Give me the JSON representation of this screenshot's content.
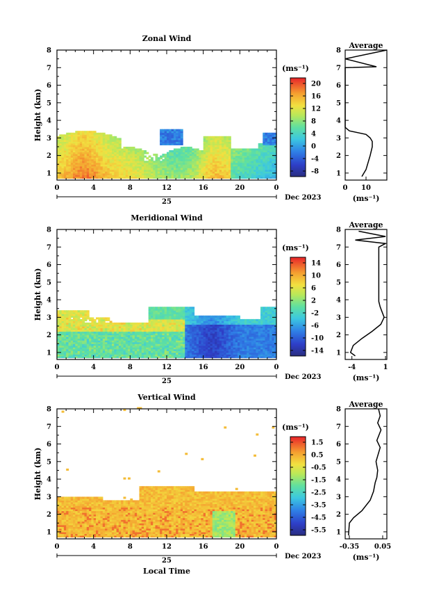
{
  "panels": [
    {
      "title": "Zonal Wind",
      "avg_title": "Average",
      "unit": "(ms⁻¹)",
      "avg_unit": "(ms⁻¹)",
      "colorbar_ticks": [
        "20",
        "16",
        "12",
        "8",
        "4",
        "0",
        "-4",
        "-8"
      ],
      "avg_xticks": [
        "0",
        "10"
      ],
      "avg_xrange": [
        0,
        20
      ],
      "clim": [
        -10,
        22
      ]
    },
    {
      "title": "Meridional Wind",
      "avg_title": "Average",
      "unit": "(ms⁻¹)",
      "avg_unit": "(ms⁻¹)",
      "colorbar_ticks": [
        "14",
        "10",
        "6",
        "2",
        "-2",
        "-6",
        "-10",
        "-14"
      ],
      "avg_xticks": [
        "-4",
        "1"
      ],
      "avg_xrange": [
        -5,
        1.2
      ],
      "clim": [
        -16,
        16
      ]
    },
    {
      "title": "Vertical Wind",
      "avg_title": "Average",
      "unit": "(ms⁻¹)",
      "avg_unit": "(ms⁻¹)",
      "colorbar_ticks": [
        "1.5",
        "0.5",
        "-0.5",
        "-1.5",
        "-2.5",
        "-3.5",
        "-4.5",
        "-5.5"
      ],
      "avg_xticks": [
        "-0.35",
        "0.05"
      ],
      "avg_xrange": [
        -0.4,
        0.1
      ],
      "clim": [
        -6,
        2
      ]
    }
  ],
  "axes": {
    "ylabel": "Height (km)",
    "yticks": [
      "1",
      "2",
      "3",
      "4",
      "5",
      "6",
      "7",
      "8"
    ],
    "xticks": [
      "0",
      "4",
      "8",
      "12",
      "16",
      "20",
      "0"
    ],
    "day_label": "25",
    "month_label": "Dec 2023",
    "xlabel": "Local Time"
  },
  "chart_data": [
    {
      "type": "heatmap",
      "title": "Zonal Wind",
      "xlabel": "",
      "ylabel": "Height (km)",
      "xlim": [
        0,
        24
      ],
      "ylim": [
        0.6,
        8
      ],
      "colorbar_unit": "(ms⁻¹)",
      "colorbar_ticks": [
        20,
        16,
        12,
        8,
        4,
        0,
        -4,
        -8
      ],
      "description_points": [
        {
          "x_hour": 1,
          "height_km": 2.8,
          "value": 16
        },
        {
          "x_hour": 3,
          "height_km": 3.0,
          "value": 20
        },
        {
          "x_hour": 5,
          "height_km": 2.5,
          "value": 14
        },
        {
          "x_hour": 8,
          "height_km": 2.0,
          "value": 10
        },
        {
          "x_hour": 11.5,
          "height_km": 3.1,
          "value": -4
        },
        {
          "x_hour": 13,
          "height_km": 3.1,
          "value": -4
        },
        {
          "x_hour": 17,
          "height_km": 2.8,
          "value": 14
        },
        {
          "x_hour": 20,
          "height_km": 2.0,
          "value": 8
        },
        {
          "x_hour": 23,
          "height_km": 3.0,
          "value": -3
        }
      ]
    },
    {
      "type": "line",
      "title": "Average",
      "xlabel": "(ms⁻¹)",
      "xlim": [
        0,
        20
      ],
      "ylim": [
        0.6,
        8
      ],
      "x": [
        8,
        10,
        11,
        12,
        13,
        13,
        12,
        10,
        2,
        0,
        0,
        0,
        15,
        0,
        20
      ],
      "y": [
        0.8,
        1.2,
        1.6,
        2.0,
        2.5,
        2.8,
        3.0,
        3.2,
        3.4,
        3.6,
        6.5,
        7.0,
        7.05,
        7.5,
        8.0
      ]
    },
    {
      "type": "heatmap",
      "title": "Meridional Wind",
      "xlabel": "",
      "ylabel": "Height (km)",
      "xlim": [
        0,
        24
      ],
      "ylim": [
        0.6,
        8
      ],
      "colorbar_unit": "(ms⁻¹)",
      "colorbar_ticks": [
        14,
        10,
        6,
        2,
        -2,
        -6,
        -10,
        -14
      ],
      "description_points": [
        {
          "x_hour": 1,
          "height_km": 2.8,
          "value": 6
        },
        {
          "x_hour": 2,
          "height_km": 1.5,
          "value": -2
        },
        {
          "x_hour": 6,
          "height_km": 2.5,
          "value": 8
        },
        {
          "x_hour": 10,
          "height_km": 1.4,
          "value": -2
        },
        {
          "x_hour": 12,
          "height_km": 2.8,
          "value": 0
        },
        {
          "x_hour": 17,
          "height_km": 2.0,
          "value": -12
        },
        {
          "x_hour": 20,
          "height_km": 1.5,
          "value": -10
        },
        {
          "x_hour": 23,
          "height_km": 3.0,
          "value": 0
        }
      ]
    },
    {
      "type": "line",
      "title": "Average",
      "xlabel": "(ms⁻¹)",
      "xlim": [
        -5,
        1.2
      ],
      "ylim": [
        0.6,
        8
      ],
      "x": [
        -3.5,
        -4.2,
        -3.8,
        -2.5,
        -1.0,
        0.3,
        0.8,
        0.5,
        0.2,
        0.0,
        0.0,
        1.0,
        -3.5,
        1.0,
        -3.0
      ],
      "y": [
        0.8,
        1.0,
        1.4,
        1.8,
        2.2,
        2.6,
        3.0,
        3.3,
        3.6,
        3.9,
        7.0,
        7.2,
        7.4,
        7.6,
        7.9
      ]
    },
    {
      "type": "heatmap",
      "title": "Vertical Wind",
      "xlabel": "Local Time",
      "ylabel": "Height (km)",
      "xlim": [
        0,
        24
      ],
      "ylim": [
        0.6,
        8
      ],
      "colorbar_unit": "(ms⁻¹)",
      "colorbar_ticks": [
        1.5,
        0.5,
        -0.5,
        -1.5,
        -2.5,
        -3.5,
        -4.5,
        -5.5
      ],
      "description_points": [
        {
          "x_hour": 2,
          "height_km": 2.0,
          "value": 0.3
        },
        {
          "x_hour": 6,
          "height_km": 2.5,
          "value": 0.2
        },
        {
          "x_hour": 10,
          "height_km": 1.5,
          "value": 1.5
        },
        {
          "x_hour": 12,
          "height_km": 3.2,
          "value": 0.8
        },
        {
          "x_hour": 18,
          "height_km": 1.5,
          "value": -2.0
        },
        {
          "x_hour": 23,
          "height_km": 1.5,
          "value": 1.5
        }
      ]
    },
    {
      "type": "line",
      "title": "Average",
      "xlabel": "(ms⁻¹)",
      "xlim": [
        -0.4,
        0.1
      ],
      "ylim": [
        0.6,
        8
      ],
      "x": [
        -0.36,
        -0.35,
        -0.3,
        -0.2,
        -0.1,
        -0.06,
        -0.04,
        -0.02,
        -0.01,
        -0.03,
        0.02,
        -0.02,
        0.03,
        -0.01,
        0.02,
        0.0
      ],
      "y": [
        0.8,
        1.5,
        1.8,
        2.2,
        2.8,
        3.3,
        3.8,
        4.1,
        4.5,
        5.0,
        5.8,
        6.2,
        6.8,
        7.2,
        7.6,
        8.0
      ]
    }
  ]
}
